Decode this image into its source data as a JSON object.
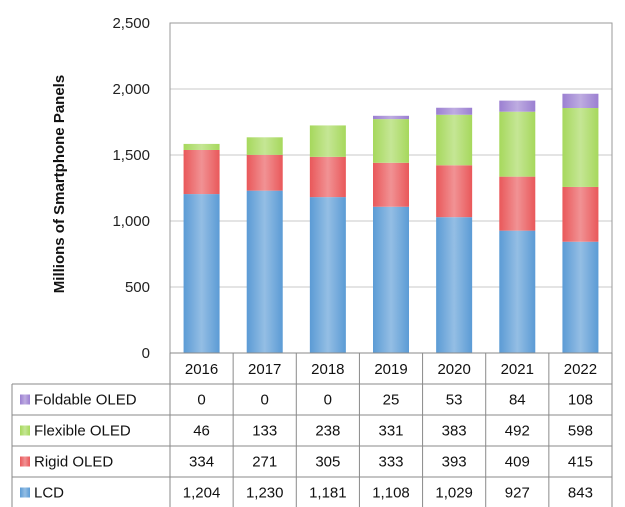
{
  "chart_data": {
    "type": "bar",
    "stacked": true,
    "title": "",
    "xlabel": "",
    "ylabel": "Millions of Smartphone Panels",
    "ylim": [
      0,
      2500
    ],
    "yticks": [
      "0",
      "500",
      "1,000",
      "1,500",
      "2,000",
      "2,500"
    ],
    "ytick_values": [
      0,
      500,
      1000,
      1500,
      2000,
      2500
    ],
    "grid": true,
    "categories": [
      "2016",
      "2017",
      "2018",
      "2019",
      "2020",
      "2021",
      "2022"
    ],
    "series": [
      {
        "name": "LCD",
        "color": "#5b9bd5",
        "values": [
          1204,
          1230,
          1181,
          1108,
          1029,
          927,
          843
        ],
        "labels": [
          "1,204",
          "1,230",
          "1,181",
          "1,108",
          "1,029",
          "927",
          "843"
        ]
      },
      {
        "name": "Rigid OLED",
        "color": "#e9585a",
        "values": [
          334,
          271,
          305,
          333,
          393,
          409,
          415
        ],
        "labels": [
          "334",
          "271",
          "305",
          "333",
          "393",
          "409",
          "415"
        ]
      },
      {
        "name": "Flexible OLED",
        "color": "#a6d85c",
        "values": [
          46,
          133,
          238,
          331,
          383,
          492,
          598
        ],
        "labels": [
          "46",
          "133",
          "238",
          "331",
          "383",
          "492",
          "598"
        ]
      },
      {
        "name": "Foldable OLED",
        "color": "#9b7fd1",
        "values": [
          0,
          0,
          0,
          25,
          53,
          84,
          108
        ],
        "labels": [
          "0",
          "0",
          "0",
          "25",
          "53",
          "84",
          "108"
        ]
      }
    ],
    "table_row_order": [
      "Foldable OLED",
      "Flexible OLED",
      "Rigid OLED",
      "LCD"
    ]
  }
}
